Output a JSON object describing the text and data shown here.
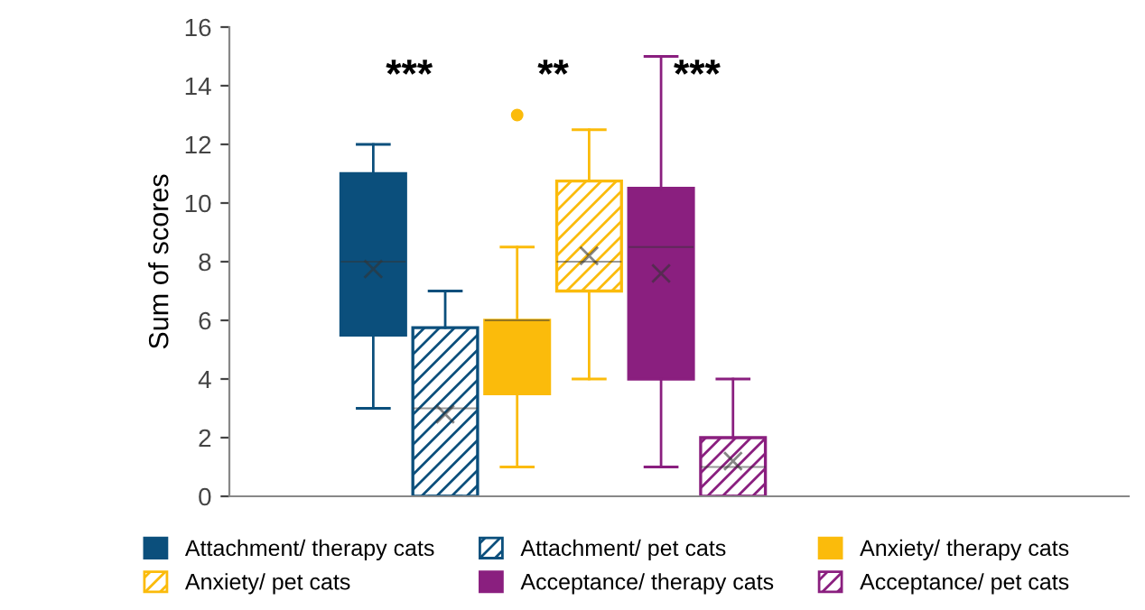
{
  "chart_data": {
    "type": "box",
    "ylabel": "Sum of scores",
    "categories": [
      null
    ],
    "ylim": [
      0,
      16
    ],
    "yticks": [
      0,
      2,
      4,
      6,
      8,
      10,
      12,
      14,
      16
    ],
    "grid": false,
    "legend": "bottom",
    "annotations": [
      "***",
      "**",
      "***"
    ],
    "series": [
      {
        "name": "Attachment/ therapy cats",
        "color": "#0b4f7c",
        "boxes": [
          {
            "low": 3,
            "q1": 5.5,
            "median": 8,
            "q3": 11,
            "high": 12,
            "mean": 7.75
          }
        ]
      },
      {
        "name": "Attachment/ pet cats",
        "color": "#0b4f7c",
        "boxes": [
          {
            "low": 0,
            "q1": 0,
            "median": 3,
            "q3": 5.75,
            "high": 7,
            "mean": 2.8
          }
        ]
      },
      {
        "name": "Anxiety/ therapy cats",
        "color": "#fbbb0b",
        "boxes": [
          {
            "low": 1,
            "q1": 3.5,
            "median": 6,
            "q3": 6,
            "high": 8.5,
            "outliers": [
              13
            ]
          }
        ]
      },
      {
        "name": "Anxiety/ pet cats",
        "color": "#fbbb0b",
        "boxes": [
          {
            "low": 4,
            "q1": 7,
            "median": 8,
            "q3": 10.75,
            "high": 12.5,
            "mean": 8.2
          }
        ]
      },
      {
        "name": "Acceptance/ therapy cats",
        "color": "#8a1f7f",
        "boxes": [
          {
            "low": 1,
            "q1": 4,
            "median": 8.5,
            "q3": 10.5,
            "high": 15,
            "mean": 7.6
          }
        ]
      },
      {
        "name": "Acceptance/ pet cats",
        "color": "#8a1f7f",
        "boxes": [
          {
            "low": 0,
            "q1": 0,
            "median": 1,
            "q3": 2,
            "high": 4,
            "mean": 1.2
          }
        ]
      }
    ]
  }
}
